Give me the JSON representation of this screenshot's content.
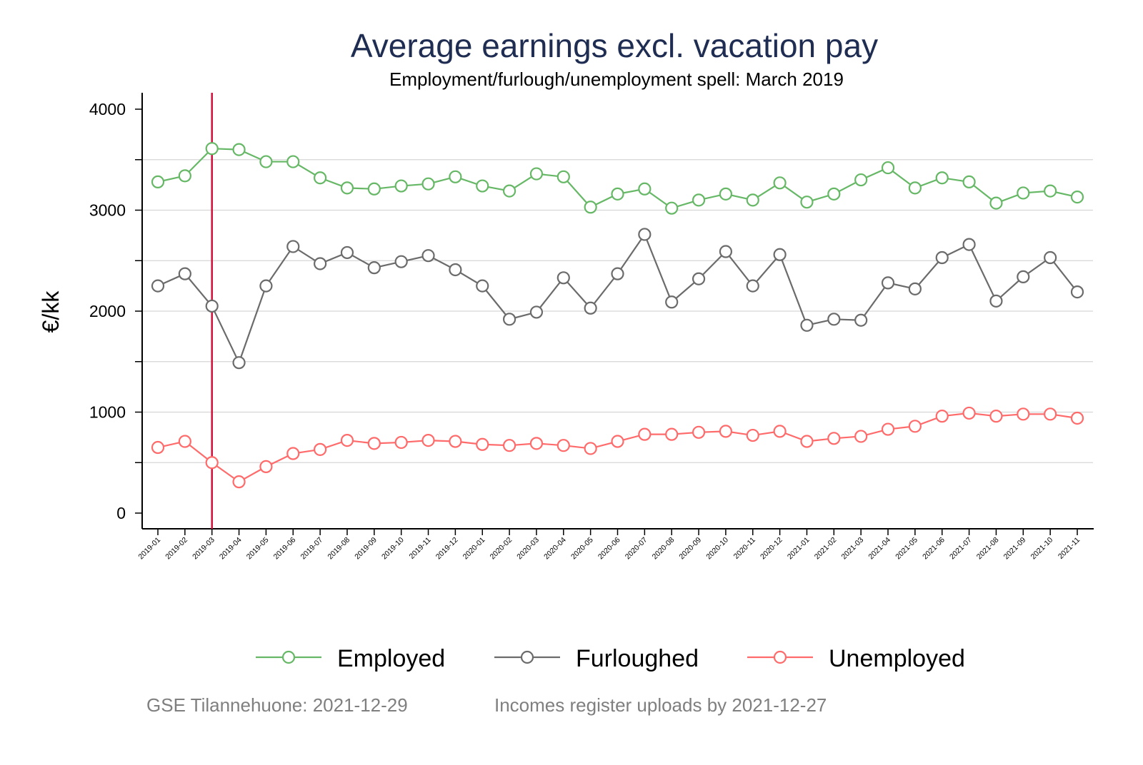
{
  "chart_data": {
    "type": "line",
    "title": "Average earnings excl. vacation pay",
    "subtitle": "Employment/furlough/unemployment spell: March 2019",
    "ylabel": "€/kk",
    "xlabel": "",
    "ylim": [
      0,
      4000
    ],
    "yticks": [
      0,
      1000,
      2000,
      3000,
      4000
    ],
    "grid": true,
    "legend_position": "bottom",
    "reference_line": {
      "x": "2019-03",
      "color": "#d0103a"
    },
    "categories": [
      "2019-01",
      "2019-02",
      "2019-03",
      "2019-04",
      "2019-05",
      "2019-06",
      "2019-07",
      "2019-08",
      "2019-09",
      "2019-10",
      "2019-11",
      "2019-12",
      "2020-01",
      "2020-02",
      "2020-03",
      "2020-04",
      "2020-05",
      "2020-06",
      "2020-07",
      "2020-08",
      "2020-09",
      "2020-10",
      "2020-11",
      "2020-12",
      "2021-01",
      "2021-02",
      "2021-03",
      "2021-04",
      "2021-05",
      "2021-06",
      "2021-07",
      "2021-08",
      "2021-09",
      "2021-10",
      "2021-11"
    ],
    "series": [
      {
        "name": "Employed",
        "color": "#66b866",
        "values": [
          3280,
          3340,
          3610,
          3600,
          3480,
          3480,
          3320,
          3220,
          3210,
          3240,
          3260,
          3330,
          3240,
          3190,
          3360,
          3330,
          3030,
          3160,
          3210,
          3020,
          3100,
          3160,
          3100,
          3270,
          3080,
          3160,
          3300,
          3420,
          3220,
          3320,
          3280,
          3070,
          3170,
          3190,
          3130
        ]
      },
      {
        "name": "Furloughed",
        "color": "#6b6b6b",
        "values": [
          2250,
          2370,
          2050,
          1490,
          2250,
          2640,
          2470,
          2580,
          2430,
          2490,
          2550,
          2410,
          2250,
          1920,
          1990,
          2330,
          2030,
          2370,
          2760,
          2090,
          2320,
          2590,
          2250,
          2560,
          1860,
          1920,
          1910,
          2280,
          2220,
          2530,
          2660,
          2100,
          2340,
          2530,
          2190
        ]
      },
      {
        "name": "Unemployed",
        "color": "#ff6b6b",
        "values": [
          650,
          710,
          500,
          310,
          460,
          590,
          630,
          720,
          690,
          700,
          720,
          710,
          680,
          670,
          690,
          670,
          640,
          710,
          780,
          780,
          800,
          810,
          770,
          810,
          710,
          740,
          760,
          830,
          860,
          960,
          990,
          960,
          980,
          980,
          940
        ]
      }
    ]
  },
  "footer": {
    "source": "GSE Tilannehuone: 2021-12-29",
    "note": "Incomes register uploads by 2021-12-27"
  }
}
